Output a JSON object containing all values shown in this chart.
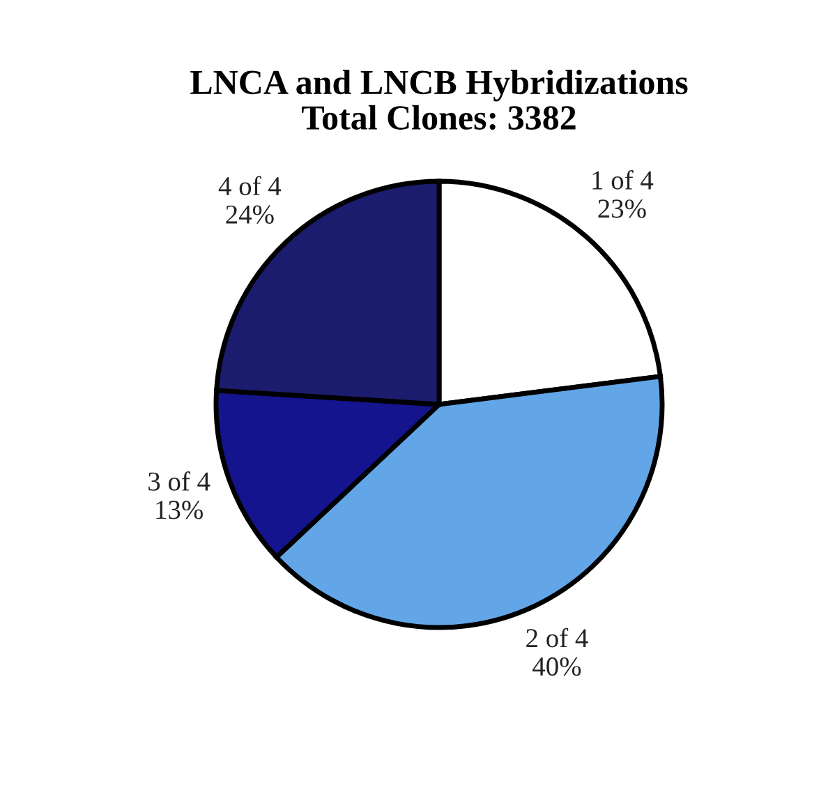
{
  "chart_data": {
    "type": "pie",
    "title": "LNCA and LNCB Hybridizations\nTotal Clones: 3382",
    "categories": [
      "1 of 4",
      "2 of 4",
      "3 of 4",
      "4 of 4"
    ],
    "values": [
      23,
      40,
      13,
      24
    ],
    "value_labels": [
      "23%",
      "40%",
      "13%",
      "24%"
    ],
    "colors": [
      "#ffffff",
      "#62a6e8",
      "#14148e",
      "#1c1c6e"
    ],
    "legend": false
  }
}
